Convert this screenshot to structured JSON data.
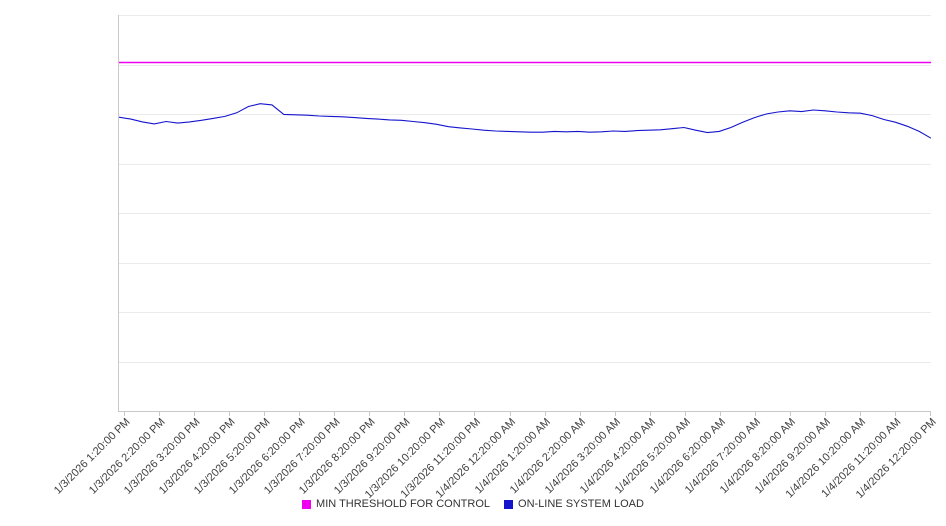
{
  "chart_data": {
    "type": "line",
    "title": "",
    "xlabel": "",
    "ylabel": "",
    "ylim": [
      0,
      100
    ],
    "grid_divisions": 8,
    "grid": true,
    "legend_position": "bottom",
    "categories": [
      "1/3/2026 1:20:00 PM",
      "1/3/2026 2:20:00 PM",
      "1/3/2026 3:20:00 PM",
      "1/3/2026 4:20:00 PM",
      "1/3/2026 5:20:00 PM",
      "1/3/2026 6:20:00 PM",
      "1/3/2026 7:20:00 PM",
      "1/3/2026 8:20:00 PM",
      "1/3/2026 9:20:00 PM",
      "1/3/2026 10:20:00 PM",
      "1/3/2026 11:20:00 PM",
      "1/4/2026 12:20:00 AM",
      "1/4/2026 1:20:00 AM",
      "1/4/2026 2:20:00 AM",
      "1/4/2026 3:20:00 AM",
      "1/4/2026 4:20:00 AM",
      "1/4/2026 5:20:00 AM",
      "1/4/2026 6:20:00 AM",
      "1/4/2026 7:20:00 AM",
      "1/4/2026 8:20:00 AM",
      "1/4/2026 9:20:00 AM",
      "1/4/2026 10:20:00 AM",
      "1/4/2026 11:20:00 AM",
      "1/4/2026 12:20:00 PM"
    ],
    "series": [
      {
        "name": "MIN THRESHOLD FOR CONTROL",
        "color": "#f000f0",
        "values": [
          88,
          88
        ]
      },
      {
        "name": "ON-LINE SYSTEM LOAD",
        "color": "#1414cd",
        "values": [
          74.2,
          73.7,
          73.0,
          72.5,
          73.1,
          72.7,
          73.0,
          73.4,
          73.9,
          74.4,
          75.3,
          76.9,
          77.6,
          77.3,
          74.9,
          74.8,
          74.7,
          74.5,
          74.4,
          74.3,
          74.1,
          73.9,
          73.7,
          73.5,
          73.4,
          73.1,
          72.8,
          72.4,
          71.8,
          71.5,
          71.2,
          70.9,
          70.7,
          70.6,
          70.5,
          70.4,
          70.4,
          70.6,
          70.5,
          70.6,
          70.4,
          70.5,
          70.7,
          70.6,
          70.8,
          70.9,
          71.0,
          71.3,
          71.6,
          70.9,
          70.3,
          70.6,
          71.6,
          72.9,
          74.1,
          75.0,
          75.5,
          75.8,
          75.6,
          76.0,
          75.8,
          75.5,
          75.3,
          75.2,
          74.6,
          73.6,
          72.9,
          71.9,
          70.6,
          68.9
        ]
      }
    ]
  },
  "colors": {
    "grid": "#ebebeb",
    "axis": "#c9c9c9",
    "label_text": "#404040"
  }
}
